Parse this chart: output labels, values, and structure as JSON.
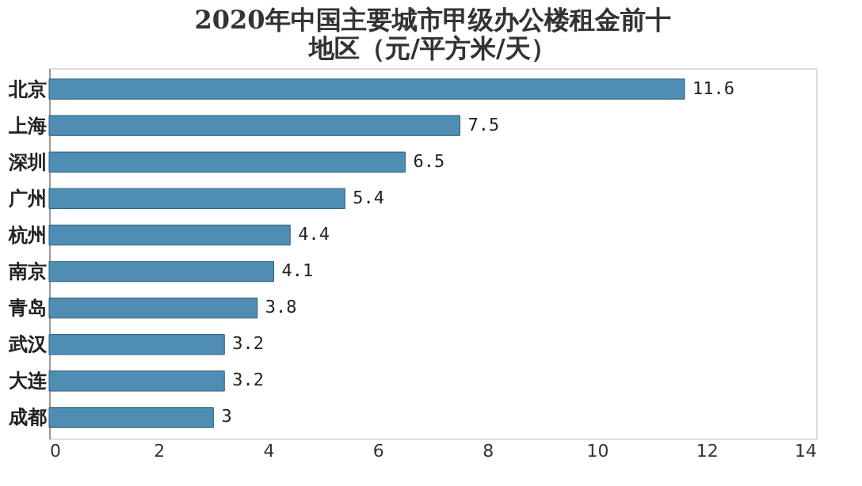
{
  "chart_data": {
    "type": "bar",
    "orientation": "horizontal",
    "title": "2020年中国主要城市甲级办公楼租金前十地区（元/平方米/天）",
    "categories": [
      "北京",
      "上海",
      "深圳",
      "广州",
      "杭州",
      "南京",
      "青岛",
      "武汉",
      "大连",
      "成都"
    ],
    "values": [
      11.6,
      7.5,
      6.5,
      5.4,
      4.4,
      4.1,
      3.8,
      3.2,
      3.2,
      3
    ],
    "color": "#4f8db3",
    "xlim": [
      0,
      14
    ],
    "xticks": [
      0,
      2,
      4,
      6,
      8,
      10,
      12,
      14
    ],
    "data_labels": true,
    "grid": false
  }
}
